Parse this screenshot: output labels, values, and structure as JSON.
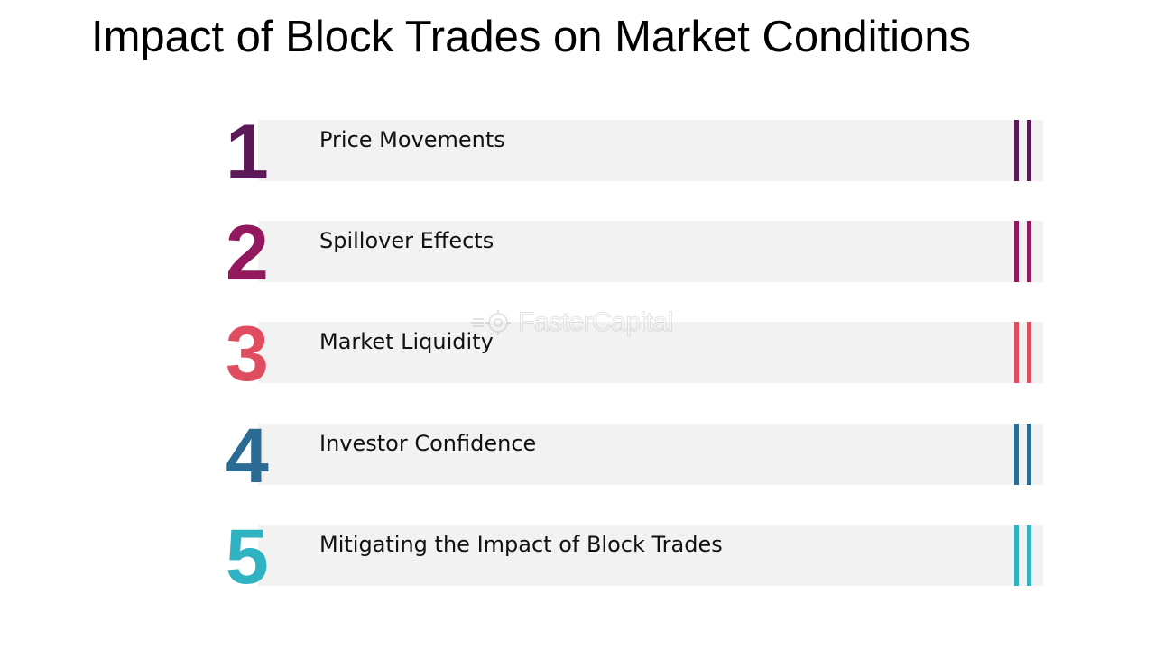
{
  "slide": {
    "title": "Impact of Block Trades on Market Conditions"
  },
  "items": [
    {
      "number": "1",
      "label": "Price Movements",
      "color": "#5b1a57"
    },
    {
      "number": "2",
      "label": "Spillover Effects",
      "color": "#93195e"
    },
    {
      "number": "3",
      "label": "Market Liquidity",
      "color": "#e04d60"
    },
    {
      "number": "4",
      "label": "Investor Confidence",
      "color": "#2b6a93"
    },
    {
      "number": "5",
      "label": "Mitigating the Impact of Block Trades",
      "color": "#2fb2c1"
    }
  ],
  "watermark": {
    "text": "FasterCapital",
    "icon": "gear-icon"
  }
}
